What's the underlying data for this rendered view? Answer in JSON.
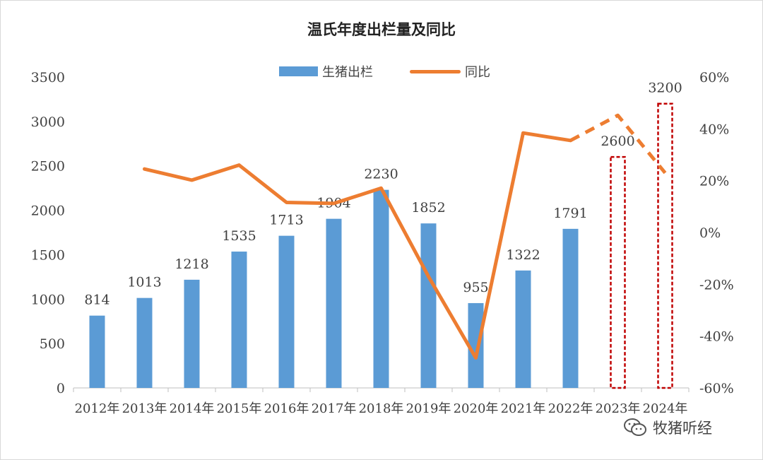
{
  "chart_data": {
    "type": "bar+line",
    "title": "温氏年度出栏量及同比",
    "categories": [
      "2012年",
      "2013年",
      "2014年",
      "2015年",
      "2016年",
      "2017年",
      "2018年",
      "2019年",
      "2020年",
      "2021年",
      "2022年",
      "2023年",
      "2024年"
    ],
    "series": [
      {
        "name": "生猪出栏",
        "type": "bar",
        "axis": "left",
        "color": "#5b9bd5",
        "values": [
          814,
          1013,
          1218,
          1535,
          1713,
          1904,
          2230,
          1852,
          955,
          1322,
          1791,
          2600,
          3200
        ],
        "labels": [
          "814",
          "1013",
          "1218",
          "1535",
          "1713",
          "1904",
          "2230",
          "1852",
          "955",
          "1322",
          "1791",
          "2600",
          "3200"
        ],
        "projected_style": "dashed-outline-red",
        "projected_color": "#c00000",
        "projected_from_index": 11
      },
      {
        "name": "同比",
        "type": "line",
        "axis": "right",
        "color": "#ed7d31",
        "values": [
          null,
          24.5,
          20.2,
          26.0,
          11.6,
          11.2,
          17.1,
          -17.0,
          -48.4,
          38.4,
          35.5,
          45.2,
          23.0
        ],
        "dashed_from_index": 10
      }
    ],
    "y_left": {
      "min": 0,
      "max": 3500,
      "ticks": [
        0,
        500,
        1000,
        1500,
        2000,
        2500,
        3000,
        3500
      ]
    },
    "y_right": {
      "min": -60,
      "max": 60,
      "ticks": [
        "-60%",
        "-40%",
        "-20%",
        "0%",
        "20%",
        "40%",
        "60%"
      ]
    },
    "legend_position": "top-center",
    "grid": false
  },
  "watermark": {
    "text": "牧猪听经",
    "icon": "wechat-icon"
  }
}
